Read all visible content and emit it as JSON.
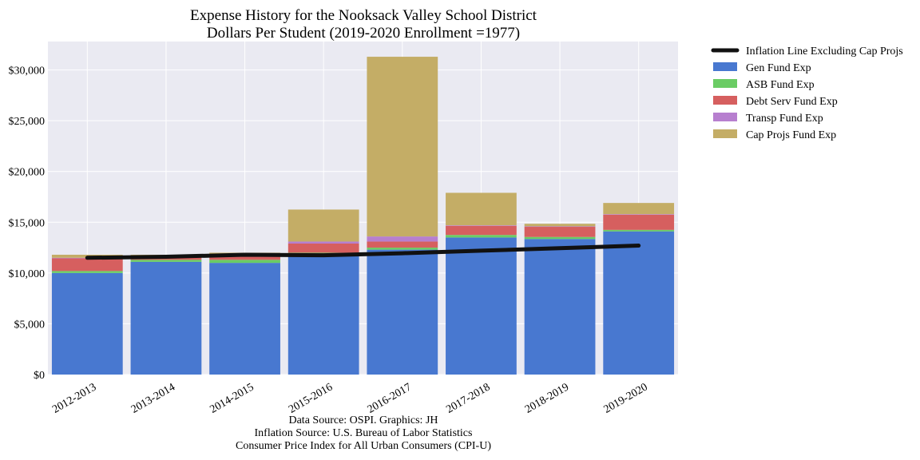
{
  "chart_data": {
    "type": "bar",
    "stacked": true,
    "title": "Expense History for the Nooksack Valley School District",
    "subtitle": "Dollars Per Student (2019-2020 Enrollment =1977)",
    "xlabel": "",
    "ylabel": "",
    "categories": [
      "2012-2013",
      "2013-2014",
      "2014-2015",
      "2015-2016",
      "2016-2017",
      "2017-2018",
      "2018-2019",
      "2019-2020"
    ],
    "ylim": [
      0,
      32800
    ],
    "yticks": [
      0,
      5000,
      10000,
      15000,
      20000,
      25000,
      30000
    ],
    "ytick_labels": [
      "$0",
      "$5,000",
      "$10,000",
      "$15,000",
      "$20,000",
      "$25,000",
      "$30,000"
    ],
    "grid": true,
    "legend_position": "outside-right",
    "series": [
      {
        "name": "Gen Fund Exp",
        "color": "#4878d0",
        "values": [
          10000,
          11100,
          11000,
          11800,
          12300,
          13500,
          13350,
          14100
        ]
      },
      {
        "name": "ASB Fund Exp",
        "color": "#6acc64",
        "values": [
          200,
          200,
          300,
          200,
          200,
          250,
          200,
          150
        ]
      },
      {
        "name": "Debt Serv Fund Exp",
        "color": "#d65f5f",
        "values": [
          1250,
          350,
          300,
          900,
          600,
          900,
          1000,
          1500
        ]
      },
      {
        "name": "Transp Fund Exp",
        "color": "#b77fcf",
        "values": [
          50,
          50,
          50,
          200,
          500,
          50,
          50,
          50
        ]
      },
      {
        "name": "Cap Projs Fund Exp",
        "color": "#c4ad66",
        "values": [
          300,
          100,
          350,
          3150,
          17700,
          3200,
          250,
          1100
        ]
      }
    ],
    "line": {
      "name": "Inflation Line Excluding Cap Projs",
      "color": "#111111",
      "values": [
        11500,
        11600,
        11800,
        11750,
        11950,
        12200,
        12450,
        12700
      ]
    }
  },
  "source": {
    "line1": "Data Source: OSPI. Graphics: JH",
    "line2": "Inflation Source: U.S. Bureau of Labor Statistics",
    "line3": "Consumer Price Index for All Urban Consumers (CPI-U)"
  }
}
